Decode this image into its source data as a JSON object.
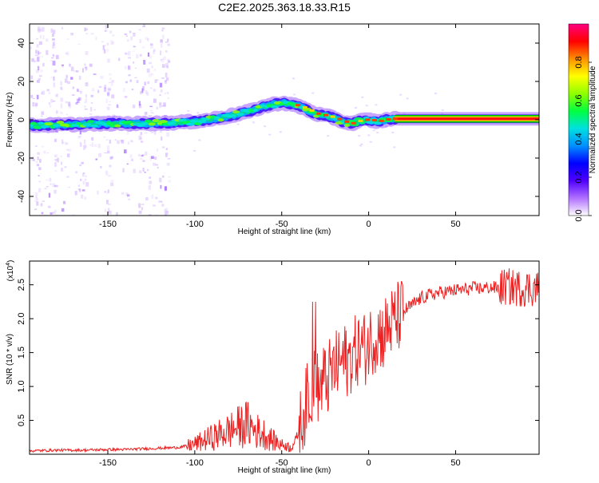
{
  "title": "C2E2.2025.363.18.33.R15",
  "chart_data": [
    {
      "type": "heatmap",
      "xlabel": "Height of straight line (km)",
      "ylabel": "Frequency (Hz)",
      "xlim": [
        -195,
        98
      ],
      "ylim": [
        -50,
        50
      ],
      "x_ticks": [
        -150,
        -100,
        -50,
        0,
        50
      ],
      "y_ticks": [
        -40,
        -20,
        0,
        20,
        40
      ],
      "x_tick_labels": [
        "-150",
        "-100",
        "-50",
        "0",
        "50"
      ],
      "y_tick_labels": [
        "-40",
        "-20",
        "0",
        "20",
        "40"
      ],
      "ridge": {
        "x": [
          -195,
          -170,
          -150,
          -130,
          -110,
          -95,
          -80,
          -70,
          -60,
          -50,
          -45,
          -40,
          -35,
          -30,
          -25,
          -20,
          -15,
          -10,
          -5,
          0,
          5,
          10,
          15,
          98
        ],
        "y": [
          -3,
          -2.5,
          -2,
          -2,
          -1.5,
          -0.5,
          2,
          4,
          7,
          9,
          8,
          7,
          5,
          3,
          2,
          1,
          -1,
          -2,
          -0.5,
          0,
          -1,
          0,
          0.5,
          0.5
        ]
      },
      "colorbar": {
        "label": "Normalized spectral amplitude",
        "range": [
          0,
          1
        ],
        "ticks": [
          0.0,
          0.2,
          0.4,
          0.6,
          0.8
        ],
        "tick_labels": [
          "0.0",
          "0.2",
          "0.4",
          "0.6",
          "0.8"
        ],
        "colors": [
          "#ffffff",
          "#b070ff",
          "#5000ff",
          "#0000ff",
          "#0090ff",
          "#00e0e0",
          "#00ff40",
          "#90ff00",
          "#ffff00",
          "#ff9000",
          "#ff0000",
          "#ff0080"
        ]
      },
      "grid": false
    },
    {
      "type": "line",
      "xlabel": "Height of straight line (km)",
      "ylabel": "SNR (10 * v/v)",
      "scale_label": "(x10",
      "scale_exp": "4",
      "scale_close": ")",
      "xlim": [
        -195,
        98
      ],
      "ylim": [
        0,
        2.85
      ],
      "x_ticks": [
        -150,
        -100,
        -50,
        0,
        50
      ],
      "y_ticks": [
        0.5,
        1.0,
        1.5,
        2.0,
        2.5
      ],
      "x_tick_labels": [
        "-150",
        "-100",
        "-50",
        "0",
        "50"
      ],
      "y_tick_labels": [
        "0.5",
        "1.0",
        "1.5",
        "2.0",
        "2.5"
      ],
      "line_color": "#ee2222",
      "grid": false,
      "series": [
        {
          "x": [
            -195,
            -180,
            -165,
            -150,
            -140,
            -130,
            -120,
            -110,
            -105,
            -100,
            -95,
            -90,
            -85,
            -80,
            -75,
            -70,
            -65,
            -60,
            -55,
            -50,
            -45,
            -42,
            -40,
            -38,
            -36,
            -34,
            -32,
            -30,
            -28,
            -26,
            -24,
            -22,
            -20,
            -18,
            -16,
            -14,
            -12,
            -10,
            -8,
            -6,
            -4,
            -2,
            0,
            2,
            4,
            6,
            8,
            10,
            12,
            14,
            16,
            18,
            20,
            22,
            25,
            30,
            35,
            40,
            45,
            50,
            55,
            60,
            65,
            70,
            75,
            80,
            85,
            90,
            95,
            98
          ],
          "y": [
            0.05,
            0.06,
            0.06,
            0.07,
            0.07,
            0.08,
            0.09,
            0.1,
            0.12,
            0.15,
            0.2,
            0.25,
            0.3,
            0.35,
            0.4,
            0.45,
            0.35,
            0.3,
            0.2,
            0.15,
            0.1,
            0.2,
            0.35,
            0.55,
            0.75,
            0.95,
            1.05,
            1.0,
            0.95,
            1.1,
            1.05,
            1.2,
            1.25,
            1.3,
            1.35,
            1.4,
            1.35,
            1.45,
            1.5,
            1.55,
            1.6,
            1.55,
            1.65,
            1.7,
            1.75,
            1.8,
            1.75,
            1.85,
            1.9,
            1.95,
            2.0,
            2.05,
            2.1,
            2.15,
            2.2,
            2.3,
            2.35,
            2.38,
            2.4,
            2.42,
            2.43,
            2.45,
            2.45,
            2.46,
            2.45,
            2.47,
            2.45,
            2.45,
            2.45,
            2.45
          ]
        }
      ]
    }
  ]
}
